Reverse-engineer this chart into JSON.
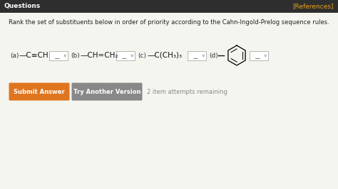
{
  "header_bg": "#2e2e2e",
  "header_text": "Questions",
  "header_ref": "[References]",
  "header_text_color": "#ffffff",
  "header_ref_color": "#e8a020",
  "body_bg": "#f5f5f0",
  "question_text": "Rank the set of substituents below in order of priority according to the Cahn-Ingold-Prelog sequence rules.",
  "question_text_color": "#222222",
  "part_a_label": "(a)",
  "part_b_label": "(b)",
  "part_c_label": "(c)",
  "part_d_label": "(d)",
  "sub_a": "—C≡CH",
  "sub_b": "—CH=CH₂",
  "sub_c": "—C(CH₃)₃",
  "btn1_text": "Submit Answer",
  "btn1_color": "#e07520",
  "btn2_text": "Try Another Version",
  "btn2_color": "#888888",
  "attempts_text": "2 item attempts remaining",
  "attempts_color": "#888888"
}
